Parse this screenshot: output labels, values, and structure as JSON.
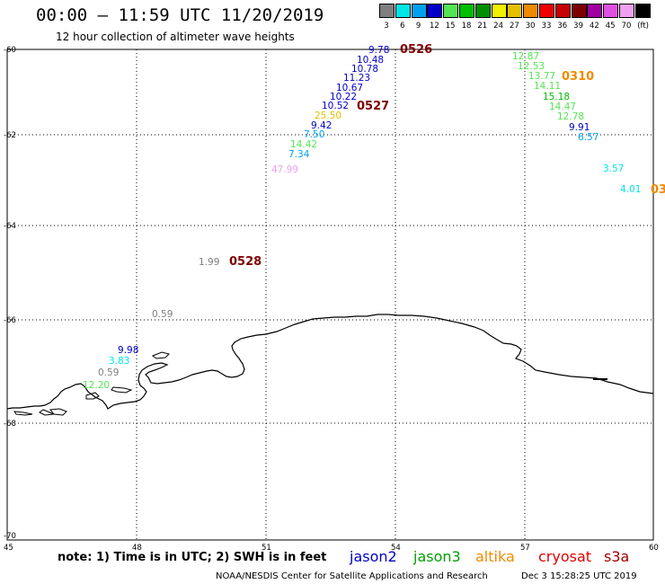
{
  "header": {
    "title": "00:00 – 11:59 UTC 11/20/2019",
    "subtitle": "12 hour collection of altimeter wave heights"
  },
  "color_scale": {
    "unit": "(ft)",
    "bins": [
      {
        "label": "3",
        "color": "#7f7f7f"
      },
      {
        "label": "6",
        "color": "#00e5e5"
      },
      {
        "label": "9",
        "color": "#00a0f0"
      },
      {
        "label": "12",
        "color": "#0000c8"
      },
      {
        "label": "15",
        "color": "#52e552"
      },
      {
        "label": "18",
        "color": "#00bf00"
      },
      {
        "label": "21",
        "color": "#008f00"
      },
      {
        "label": "24",
        "color": "#f0f000"
      },
      {
        "label": "27",
        "color": "#e5c000"
      },
      {
        "label": "30",
        "color": "#f08a00"
      },
      {
        "label": "33",
        "color": "#f00000"
      },
      {
        "label": "36",
        "color": "#c80000"
      },
      {
        "label": "39",
        "color": "#7f0000"
      },
      {
        "label": "42",
        "color": "#a000a0"
      },
      {
        "label": "45",
        "color": "#e050e0"
      },
      {
        "label": "70",
        "color": "#f0a0f0"
      },
      {
        "label": "",
        "color": "#000000"
      }
    ]
  },
  "axes": {
    "lat_labels": [
      "-60",
      "-62",
      "-64",
      "-66",
      "-68",
      "-70"
    ],
    "lon_labels": [
      "45",
      "48",
      "51",
      "54",
      "57",
      "60"
    ]
  },
  "wave_heights": [
    {
      "value": "9.78",
      "color": "#0000c8"
    },
    {
      "value": "10.48",
      "color": "#0000c8"
    },
    {
      "value": "10.78",
      "color": "#0000c8"
    },
    {
      "value": "11.23",
      "color": "#0000c8"
    },
    {
      "value": "10.67",
      "color": "#0000c8"
    },
    {
      "value": "10.22",
      "color": "#0000c8"
    },
    {
      "value": "10.52",
      "color": "#0000c8"
    },
    {
      "value": "25.50",
      "color": "#e5c000"
    },
    {
      "value": "9.42",
      "color": "#0000c8"
    },
    {
      "value": "7.50",
      "color": "#00a0f0"
    },
    {
      "value": "14.42",
      "color": "#52e552"
    },
    {
      "value": "7.34",
      "color": "#00a0f0"
    },
    {
      "value": "47.99",
      "color": "#f0a0f0"
    },
    {
      "value": "12.87",
      "color": "#52e552"
    },
    {
      "value": "12.53",
      "color": "#52e552"
    },
    {
      "value": "13.77",
      "color": "#52e552"
    },
    {
      "value": "14.11",
      "color": "#52e552"
    },
    {
      "value": "15.18",
      "color": "#00bf00"
    },
    {
      "value": "14.47",
      "color": "#52e552"
    },
    {
      "value": "12.78",
      "color": "#52e552"
    },
    {
      "value": "9.91",
      "color": "#0000c8"
    },
    {
      "value": "6.57",
      "color": "#00a0f0"
    },
    {
      "value": "3.57",
      "color": "#00e5e5"
    },
    {
      "value": "4.01",
      "color": "#00e5e5"
    },
    {
      "value": "1.99",
      "color": "#7f7f7f"
    },
    {
      "value": "0.59",
      "color": "#7f7f7f"
    },
    {
      "value": "9.98",
      "color": "#0000c8"
    },
    {
      "value": "3.83",
      "color": "#00e5e5"
    },
    {
      "value": "0.59",
      "color": "#7f7f7f"
    },
    {
      "value": "12.20",
      "color": "#52e552"
    }
  ],
  "pass_times": [
    {
      "value": "0526",
      "color": "#7f0000"
    },
    {
      "value": "0527",
      "color": "#7f0000"
    },
    {
      "value": "0310",
      "color": "#f08a00"
    },
    {
      "value": "03",
      "color": "#f08a00"
    },
    {
      "value": "0528",
      "color": "#7f0000"
    }
  ],
  "footer": {
    "note": "note: 1) Time is in UTC; 2) SWH is in feet",
    "satellites": [
      {
        "name": "jason2",
        "color": "#0000c8"
      },
      {
        "name": "jason3",
        "color": "#00a000"
      },
      {
        "name": "altika",
        "color": "#f08a00"
      },
      {
        "name": "cryosat",
        "color": "#e00000"
      },
      {
        "name": "s3a",
        "color": "#a00000"
      }
    ],
    "credit": "NOAA/NESDIS Center for Satellite Applications and Research",
    "timestamp": "Dec  3 15:28:25 UTC 2019"
  }
}
